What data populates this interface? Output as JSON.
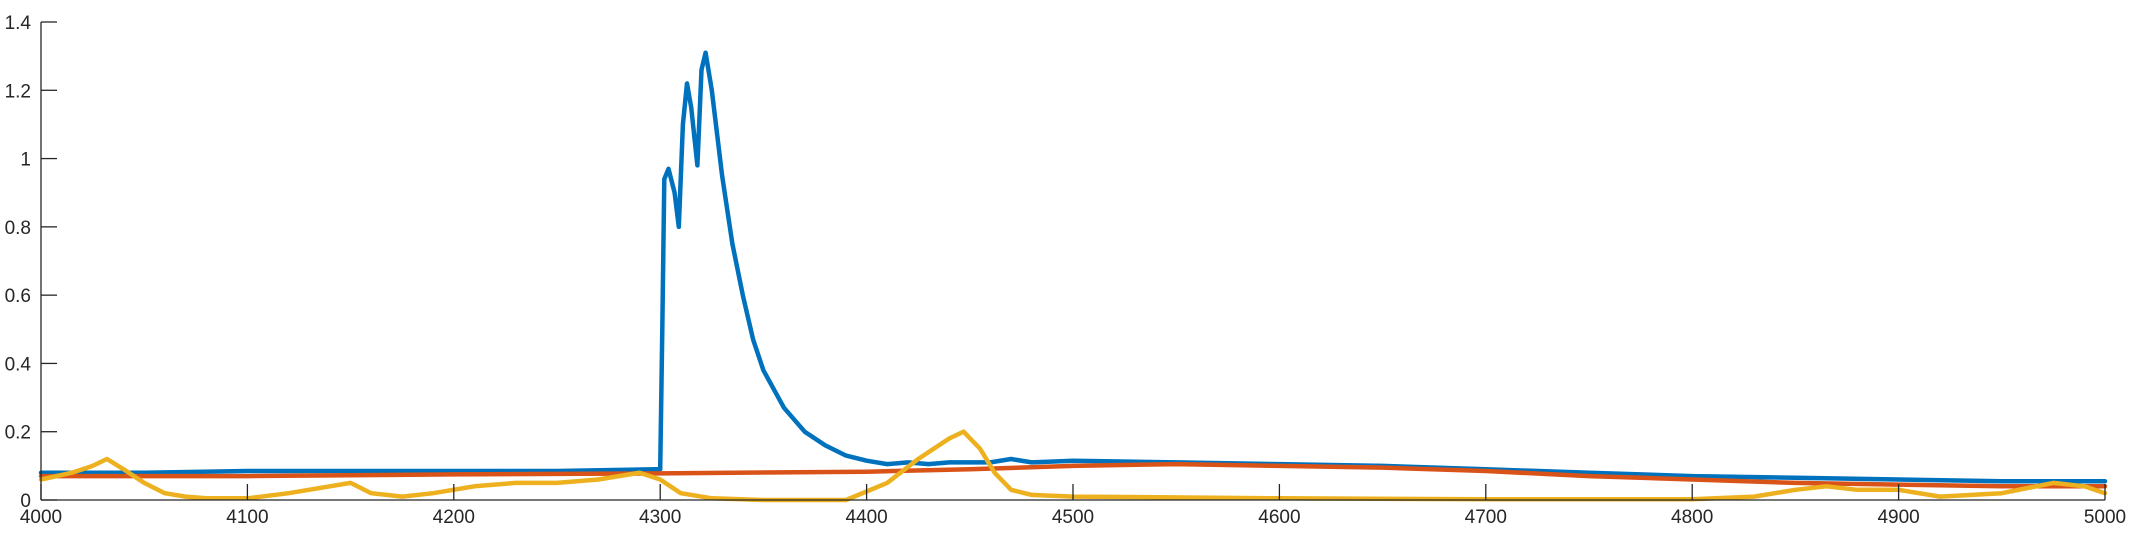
{
  "chart_data": {
    "type": "line",
    "title": "",
    "xlabel": "",
    "ylabel": "",
    "xlim": [
      4000,
      5000
    ],
    "ylim": [
      0,
      1.4
    ],
    "xticks": [
      "4000",
      "4100",
      "4200",
      "4300",
      "4400",
      "4500",
      "4600",
      "4700",
      "4800",
      "4900",
      "5000"
    ],
    "yticks": [
      "0",
      "0.2",
      "0.4",
      "0.6",
      "0.8",
      "1",
      "1.2",
      "1.4"
    ],
    "grid": false,
    "legend": "none",
    "series": [
      {
        "color": "#0072BD",
        "points": [
          [
            4000,
            0.08
          ],
          [
            4050,
            0.08
          ],
          [
            4100,
            0.085
          ],
          [
            4150,
            0.085
          ],
          [
            4200,
            0.085
          ],
          [
            4250,
            0.085
          ],
          [
            4298,
            0.09
          ],
          [
            4300,
            0.09
          ],
          [
            4301,
            0.5
          ],
          [
            4302,
            0.94
          ],
          [
            4304,
            0.97
          ],
          [
            4307,
            0.9
          ],
          [
            4309,
            0.8
          ],
          [
            4311,
            1.1
          ],
          [
            4313,
            1.22
          ],
          [
            4315,
            1.15
          ],
          [
            4318,
            0.98
          ],
          [
            4320,
            1.26
          ],
          [
            4322,
            1.31
          ],
          [
            4325,
            1.2
          ],
          [
            4330,
            0.95
          ],
          [
            4335,
            0.75
          ],
          [
            4340,
            0.6
          ],
          [
            4345,
            0.47
          ],
          [
            4350,
            0.38
          ],
          [
            4360,
            0.27
          ],
          [
            4370,
            0.2
          ],
          [
            4380,
            0.16
          ],
          [
            4390,
            0.13
          ],
          [
            4400,
            0.115
          ],
          [
            4410,
            0.105
          ],
          [
            4420,
            0.11
          ],
          [
            4430,
            0.105
          ],
          [
            4440,
            0.11
          ],
          [
            4460,
            0.11
          ],
          [
            4470,
            0.12
          ],
          [
            4480,
            0.11
          ],
          [
            4500,
            0.115
          ],
          [
            4550,
            0.11
          ],
          [
            4600,
            0.105
          ],
          [
            4650,
            0.1
          ],
          [
            4700,
            0.09
          ],
          [
            4750,
            0.08
          ],
          [
            4800,
            0.07
          ],
          [
            4850,
            0.065
          ],
          [
            4900,
            0.06
          ],
          [
            4950,
            0.055
          ],
          [
            5000,
            0.055
          ]
        ]
      },
      {
        "color": "#D95319",
        "points": [
          [
            4000,
            0.07
          ],
          [
            4100,
            0.07
          ],
          [
            4200,
            0.075
          ],
          [
            4300,
            0.078
          ],
          [
            4400,
            0.083
          ],
          [
            4450,
            0.09
          ],
          [
            4500,
            0.1
          ],
          [
            4550,
            0.105
          ],
          [
            4600,
            0.1
          ],
          [
            4650,
            0.095
          ],
          [
            4700,
            0.085
          ],
          [
            4750,
            0.07
          ],
          [
            4800,
            0.06
          ],
          [
            4850,
            0.05
          ],
          [
            4900,
            0.045
          ],
          [
            4950,
            0.04
          ],
          [
            5000,
            0.04
          ]
        ]
      },
      {
        "color": "#EDB120",
        "points": [
          [
            4000,
            0.06
          ],
          [
            4015,
            0.08
          ],
          [
            4025,
            0.1
          ],
          [
            4032,
            0.12
          ],
          [
            4040,
            0.09
          ],
          [
            4050,
            0.05
          ],
          [
            4060,
            0.02
          ],
          [
            4070,
            0.01
          ],
          [
            4080,
            0.005
          ],
          [
            4100,
            0.005
          ],
          [
            4120,
            0.02
          ],
          [
            4140,
            0.04
          ],
          [
            4150,
            0.05
          ],
          [
            4160,
            0.02
          ],
          [
            4175,
            0.01
          ],
          [
            4190,
            0.02
          ],
          [
            4210,
            0.04
          ],
          [
            4230,
            0.05
          ],
          [
            4250,
            0.05
          ],
          [
            4270,
            0.06
          ],
          [
            4290,
            0.08
          ],
          [
            4300,
            0.06
          ],
          [
            4310,
            0.02
          ],
          [
            4325,
            0.005
          ],
          [
            4350,
            0.0
          ],
          [
            4390,
            0.0
          ],
          [
            4410,
            0.05
          ],
          [
            4425,
            0.12
          ],
          [
            4440,
            0.18
          ],
          [
            4447,
            0.2
          ],
          [
            4455,
            0.15
          ],
          [
            4462,
            0.08
          ],
          [
            4470,
            0.03
          ],
          [
            4480,
            0.015
          ],
          [
            4500,
            0.01
          ],
          [
            4600,
            0.005
          ],
          [
            4700,
            0.002
          ],
          [
            4800,
            0.002
          ],
          [
            4830,
            0.01
          ],
          [
            4850,
            0.03
          ],
          [
            4865,
            0.04
          ],
          [
            4880,
            0.03
          ],
          [
            4900,
            0.03
          ],
          [
            4920,
            0.01
          ],
          [
            4950,
            0.02
          ],
          [
            4975,
            0.05
          ],
          [
            4990,
            0.04
          ],
          [
            5000,
            0.02
          ]
        ]
      }
    ]
  }
}
